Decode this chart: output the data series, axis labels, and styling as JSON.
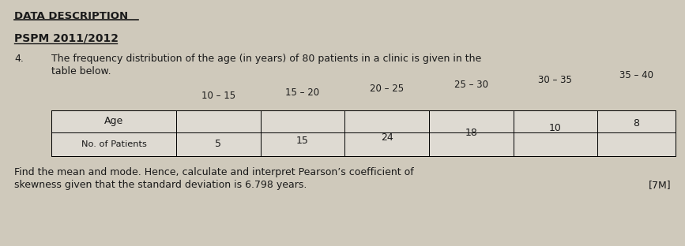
{
  "section_title": "DATA DESCRIPTION",
  "exam_label": "PSPM 2011/2012",
  "question_number": "4.",
  "question_intro": "The frequency distribution of the age (in years) of 80 patients in a clinic is given in the",
  "question_cont": "table below.",
  "age_labels": [
    "10 – 15",
    "15 – 20",
    "20 – 25",
    "25 – 30",
    "30 – 35",
    "35 – 40"
  ],
  "row1_label": "Age",
  "row2_label": "No. of Patients",
  "table_values": [
    5,
    15,
    24,
    18,
    10,
    8
  ],
  "instruction_line1": "Find the mean and mode. Hence, calculate and interpret Pearson’s coefficient of",
  "instruction_line2": "skewness given that the standard deviation is 6.798 years.",
  "marks": "[7M]",
  "page_color": "#cfc9bb",
  "text_color": "#1a1a1a",
  "table_bg": "#dedad2",
  "header_line_color": "#555555"
}
